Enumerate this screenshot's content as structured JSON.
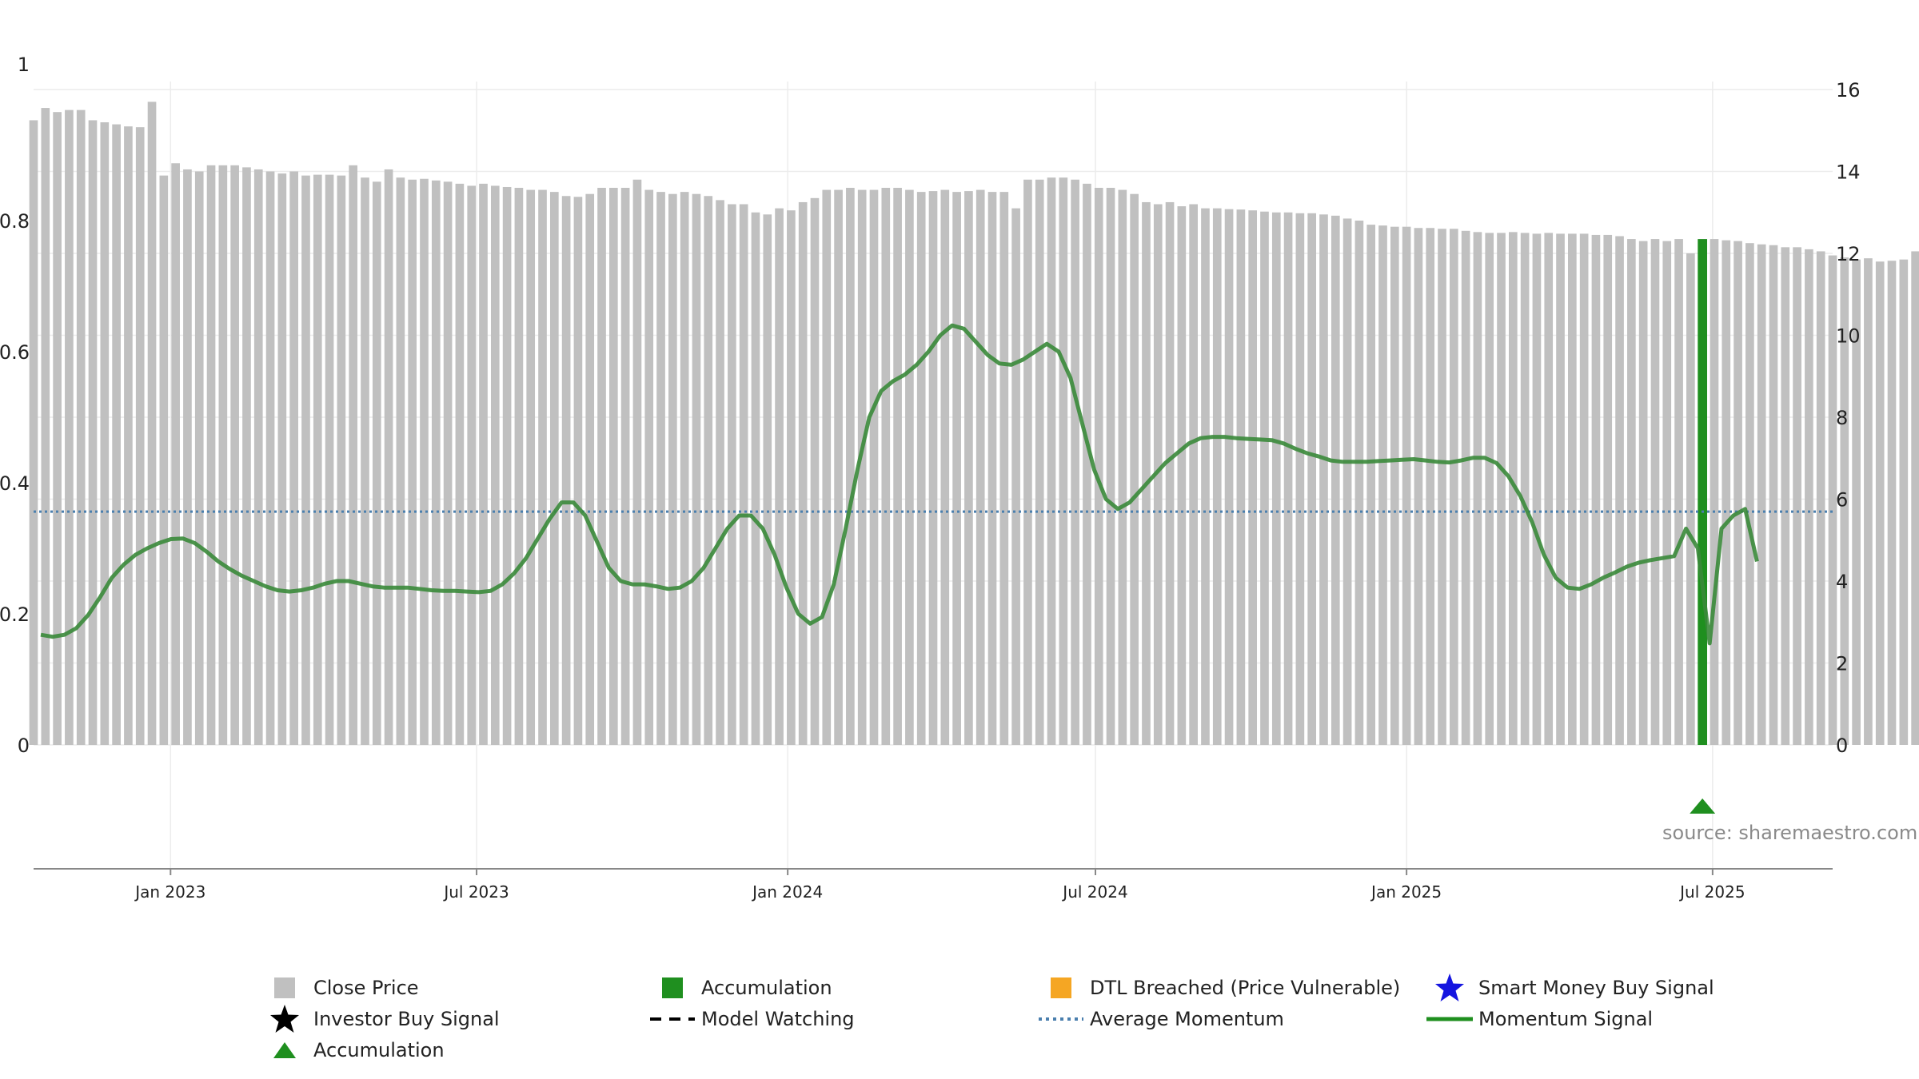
{
  "colors": {
    "close_price": "#c0c0c0",
    "momentum": "#3a8a3a",
    "accumulation": "#1f8f1f",
    "average_momentum": "#4a7fae",
    "dtl": "#f5a623",
    "smart_money": "#1515e0",
    "investor": "#000000",
    "grid": "#ececec",
    "axis": "#888888"
  },
  "source": "source: sharemaestro.com",
  "legend": [
    {
      "label": "Close Price",
      "icon": "gray-square-icon"
    },
    {
      "label": "Accumulation",
      "icon": "green-square-icon"
    },
    {
      "label": "DTL Breached (Price Vulnerable)",
      "icon": "orange-square-icon"
    },
    {
      "label": "Smart Money Buy Signal",
      "icon": "blue-star-icon"
    },
    {
      "label": "Investor Buy Signal",
      "icon": "black-star-icon"
    },
    {
      "label": "Model Watching",
      "icon": "dashed-line-icon"
    },
    {
      "label": "Average Momentum",
      "icon": "dotted-line-icon"
    },
    {
      "label": "Momentum Signal",
      "icon": "green-line-icon"
    },
    {
      "label": "Accumulation",
      "icon": "green-triangle-icon"
    }
  ],
  "chart_data": {
    "type": "bar+line",
    "x_range": [
      "2022-10-12",
      "2025-09-10"
    ],
    "x_ticks": [
      {
        "label": "Jan 2023",
        "date": "2023-01-01"
      },
      {
        "label": "Jul 2023",
        "date": "2023-07-01"
      },
      {
        "label": "Jan 2024",
        "date": "2024-01-01"
      },
      {
        "label": "Jul 2024",
        "date": "2024-07-01"
      },
      {
        "label": "Jan 2025",
        "date": "2025-01-01"
      },
      {
        "label": "Jul 2025",
        "date": "2025-07-01"
      }
    ],
    "y_left": {
      "ylim": [
        0,
        1
      ],
      "ticks": [
        0,
        0.2,
        0.4,
        0.6,
        0.8,
        1
      ]
    },
    "y_right": {
      "ylim": [
        0,
        16
      ],
      "ticks": [
        0,
        2,
        4,
        6,
        8,
        10,
        12,
        14,
        16
      ]
    },
    "close_price": {
      "name": "Close Price",
      "axis": "right",
      "start": "2022-10-12",
      "interval_days": 7,
      "values": [
        15.25,
        15.55,
        15.45,
        15.5,
        15.5,
        15.25,
        15.2,
        15.15,
        15.1,
        15.08,
        15.7,
        13.9,
        14.2,
        14.05,
        14.0,
        14.15,
        14.15,
        14.15,
        14.1,
        14.05,
        14.0,
        13.95,
        14.0,
        13.9,
        13.92,
        13.92,
        13.9,
        14.15,
        13.85,
        13.75,
        14.05,
        13.85,
        13.8,
        13.82,
        13.78,
        13.75,
        13.7,
        13.65,
        13.7,
        13.65,
        13.62,
        13.6,
        13.55,
        13.55,
        13.5,
        13.4,
        13.38,
        13.45,
        13.6,
        13.6,
        13.6,
        13.8,
        13.55,
        13.5,
        13.45,
        13.5,
        13.45,
        13.4,
        13.3,
        13.2,
        13.2,
        13.0,
        12.95,
        13.1,
        13.05,
        13.25,
        13.35,
        13.55,
        13.55,
        13.6,
        13.55,
        13.55,
        13.6,
        13.6,
        13.55,
        13.5,
        13.52,
        13.55,
        13.5,
        13.52,
        13.55,
        13.5,
        13.5,
        13.1,
        13.8,
        13.8,
        13.85,
        13.85,
        13.8,
        13.7,
        13.6,
        13.6,
        13.55,
        13.45,
        13.25,
        13.2,
        13.25,
        13.15,
        13.2,
        13.1,
        13.1,
        13.08,
        13.07,
        13.05,
        13.02,
        13.0,
        13.0,
        12.98,
        12.98,
        12.95,
        12.92,
        12.85,
        12.8,
        12.7,
        12.68,
        12.65,
        12.65,
        12.62,
        12.62,
        12.6,
        12.6,
        12.55,
        12.52,
        12.5,
        12.5,
        12.52,
        12.5,
        12.48,
        12.5,
        12.48,
        12.48,
        12.48,
        12.45,
        12.45,
        12.42,
        12.35,
        12.3,
        12.35,
        12.3,
        12.35,
        12.0,
        12.35,
        12.35,
        12.32,
        12.3,
        12.25,
        12.22,
        12.2,
        12.15,
        12.15,
        12.1,
        12.05,
        11.95,
        11.9,
        11.85,
        11.88,
        11.8,
        11.82,
        11.85,
        12.05
      ]
    },
    "momentum": {
      "name": "Momentum Signal",
      "axis": "left",
      "points": [
        [
          0,
          0.168
        ],
        [
          1,
          0.165
        ],
        [
          2,
          0.168
        ],
        [
          3,
          0.178
        ],
        [
          4,
          0.198
        ],
        [
          5,
          0.225
        ],
        [
          6,
          0.255
        ],
        [
          7,
          0.275
        ],
        [
          8,
          0.29
        ],
        [
          9,
          0.3
        ],
        [
          10,
          0.308
        ],
        [
          11,
          0.314
        ],
        [
          12,
          0.315
        ],
        [
          13,
          0.308
        ],
        [
          14,
          0.295
        ],
        [
          15,
          0.28
        ],
        [
          16,
          0.268
        ],
        [
          17,
          0.258
        ],
        [
          18,
          0.25
        ],
        [
          19,
          0.242
        ],
        [
          20,
          0.236
        ],
        [
          21,
          0.234
        ],
        [
          22,
          0.236
        ],
        [
          23,
          0.24
        ],
        [
          24,
          0.246
        ],
        [
          25,
          0.25
        ],
        [
          26,
          0.25
        ],
        [
          27,
          0.246
        ],
        [
          28,
          0.242
        ],
        [
          29,
          0.24
        ],
        [
          30,
          0.24
        ],
        [
          31,
          0.24
        ],
        [
          32,
          0.238
        ],
        [
          33,
          0.236
        ],
        [
          34,
          0.235
        ],
        [
          35,
          0.235
        ],
        [
          36,
          0.234
        ],
        [
          37,
          0.233
        ],
        [
          38,
          0.235
        ],
        [
          39,
          0.245
        ],
        [
          40,
          0.262
        ],
        [
          41,
          0.285
        ],
        [
          42,
          0.315
        ],
        [
          43,
          0.345
        ],
        [
          44,
          0.37
        ],
        [
          45,
          0.37
        ],
        [
          46,
          0.35
        ],
        [
          47,
          0.31
        ],
        [
          48,
          0.27
        ],
        [
          49,
          0.25
        ],
        [
          50,
          0.245
        ],
        [
          51,
          0.245
        ],
        [
          52,
          0.242
        ],
        [
          53,
          0.238
        ],
        [
          54,
          0.24
        ],
        [
          55,
          0.25
        ],
        [
          56,
          0.27
        ],
        [
          57,
          0.3
        ],
        [
          58,
          0.33
        ],
        [
          59,
          0.35
        ],
        [
          60,
          0.35
        ],
        [
          61,
          0.33
        ],
        [
          62,
          0.29
        ],
        [
          63,
          0.24
        ],
        [
          64,
          0.2
        ],
        [
          65,
          0.185
        ],
        [
          66,
          0.195
        ],
        [
          67,
          0.245
        ],
        [
          68,
          0.33
        ],
        [
          69,
          0.42
        ],
        [
          70,
          0.5
        ],
        [
          71,
          0.54
        ],
        [
          72,
          0.555
        ],
        [
          73,
          0.565
        ],
        [
          74,
          0.58
        ],
        [
          75,
          0.6
        ],
        [
          76,
          0.625
        ],
        [
          77,
          0.64
        ],
        [
          78,
          0.635
        ],
        [
          79,
          0.615
        ],
        [
          80,
          0.595
        ],
        [
          81,
          0.582
        ],
        [
          82,
          0.58
        ],
        [
          83,
          0.588
        ],
        [
          84,
          0.6
        ],
        [
          85,
          0.612
        ],
        [
          86,
          0.6
        ],
        [
          87,
          0.56
        ],
        [
          88,
          0.49
        ],
        [
          89,
          0.42
        ],
        [
          90,
          0.375
        ],
        [
          91,
          0.36
        ],
        [
          92,
          0.37
        ],
        [
          93,
          0.39
        ],
        [
          94,
          0.41
        ],
        [
          95,
          0.43
        ],
        [
          96,
          0.445
        ],
        [
          97,
          0.46
        ],
        [
          98,
          0.468
        ],
        [
          99,
          0.47
        ],
        [
          100,
          0.47
        ],
        [
          101,
          0.468
        ],
        [
          102,
          0.467
        ],
        [
          103,
          0.466
        ],
        [
          104,
          0.465
        ],
        [
          105,
          0.46
        ],
        [
          106,
          0.452
        ],
        [
          107,
          0.445
        ],
        [
          108,
          0.44
        ],
        [
          109,
          0.434
        ],
        [
          110,
          0.432
        ],
        [
          111,
          0.432
        ],
        [
          112,
          0.432
        ],
        [
          113,
          0.433
        ],
        [
          114,
          0.434
        ],
        [
          115,
          0.435
        ],
        [
          116,
          0.436
        ],
        [
          117,
          0.434
        ],
        [
          118,
          0.432
        ],
        [
          119,
          0.431
        ],
        [
          120,
          0.434
        ],
        [
          121,
          0.438
        ],
        [
          122,
          0.438
        ],
        [
          123,
          0.43
        ],
        [
          124,
          0.41
        ],
        [
          125,
          0.38
        ],
        [
          126,
          0.34
        ],
        [
          127,
          0.29
        ],
        [
          128,
          0.255
        ],
        [
          129,
          0.24
        ],
        [
          130,
          0.238
        ],
        [
          131,
          0.245
        ],
        [
          132,
          0.255
        ],
        [
          133,
          0.263
        ],
        [
          134,
          0.272
        ],
        [
          135,
          0.278
        ],
        [
          136,
          0.282
        ],
        [
          137,
          0.285
        ],
        [
          138,
          0.288
        ],
        [
          139,
          0.33
        ],
        [
          140,
          0.3
        ],
        [
          141,
          0.155
        ],
        [
          142,
          0.33
        ],
        [
          143,
          0.35
        ],
        [
          144,
          0.36
        ],
        [
          145,
          0.28
        ]
      ]
    },
    "average_momentum": {
      "name": "Average Momentum",
      "axis": "left",
      "value": 0.356
    },
    "accumulation_bar": {
      "name": "Accumulation",
      "week_index": 141
    },
    "accumulation_marker": {
      "name": "Accumulation",
      "week_index": 141
    }
  }
}
